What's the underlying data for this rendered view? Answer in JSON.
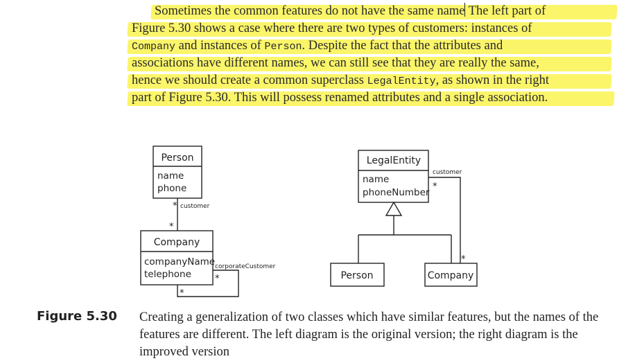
{
  "paragraph": {
    "l1a": "Sometimes the common features do not have the same name",
    "l1b": " The left part of",
    "l2": "Figure 5.30 shows a case where there are two types of customers: instances of",
    "l3a": "Company",
    "l3b": " and instances of ",
    "l3c": "Person",
    "l3d": ". Despite the fact that the attributes and",
    "l4": "associations have different names, we can still see that they are really the same,",
    "l5a": "hence we should create a common superclass ",
    "l5b": "LegalEntity",
    "l5c": ", as shown in the right",
    "l6": "part of Figure 5.30. This will possess renamed attributes and a single association."
  },
  "diagram_left": {
    "person": {
      "name": "Person",
      "attrs": [
        "name",
        "phone"
      ]
    },
    "company": {
      "name": "Company",
      "attrs": [
        "companyName",
        "telephone"
      ]
    },
    "assoc_role": "customer",
    "assoc_mult_top": "*",
    "assoc_mult_bottom": "*",
    "self_role": "corporateCustomer",
    "self_mult_right": "*",
    "self_mult_bottom": "*"
  },
  "diagram_right": {
    "legal": {
      "name": "LegalEntity",
      "attrs": [
        "name",
        "phoneNumber"
      ]
    },
    "person": {
      "name": "Person"
    },
    "company": {
      "name": "Company"
    },
    "assoc_role": "customer",
    "assoc_mult_top": "*",
    "assoc_mult_bottom": "*"
  },
  "caption": {
    "label": "Figure 5.30",
    "text": "Creating a generalization of two classes which have similar features, but the names of the features are different. The left diagram is the original version; the right diagram is the improved version"
  },
  "colors": {
    "highlight": "#fbf56a"
  }
}
